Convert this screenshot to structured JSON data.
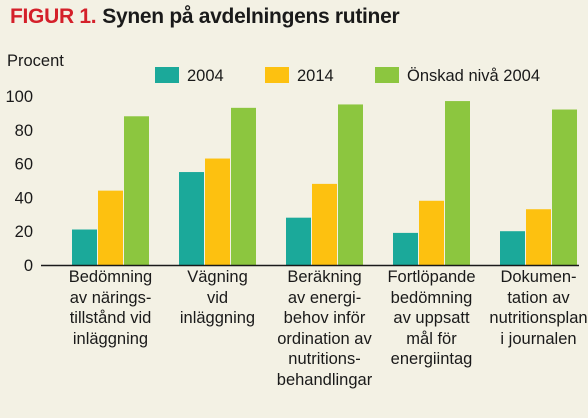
{
  "figure_label": "FIGUR 1.",
  "title": "Synen på avdelningens rutiner",
  "colors": {
    "background": "#f3f1e4",
    "title_accent": "#d4202a",
    "series_2004": "#1ba99a",
    "series_2014": "#fdc110",
    "series_target": "#8cc63f"
  },
  "chart_data": {
    "type": "bar",
    "title": "Synen på avdelningens rutiner",
    "ylabel": "Procent",
    "xlabel": "",
    "ylim": [
      0,
      100
    ],
    "yticks": [
      0,
      20,
      40,
      60,
      80,
      100
    ],
    "grid": false,
    "legend_position": "top",
    "categories": [
      "Bedömning\nav närings-\ntillstånd vid\ninläggning",
      "Vägning\nvid\ninläggning",
      "Beräkning\nav energi-\nbehov inför\nordination av\nnutritions-\nbehandlingar",
      "Fortlöpande\nbedömning\nav uppsatt\nmål för\nenergiintag",
      "Dokumen-\ntation av\nnutritionsplan\ni journalen"
    ],
    "series": [
      {
        "name": "2004",
        "color": "#1ba99a",
        "values": [
          21,
          55,
          28,
          19,
          20
        ]
      },
      {
        "name": "2014",
        "color": "#fdc110",
        "values": [
          44,
          63,
          48,
          38,
          33
        ]
      },
      {
        "name": "Önskad nivå 2004",
        "color": "#8cc63f",
        "values": [
          88,
          93,
          95,
          97,
          92
        ]
      }
    ]
  }
}
